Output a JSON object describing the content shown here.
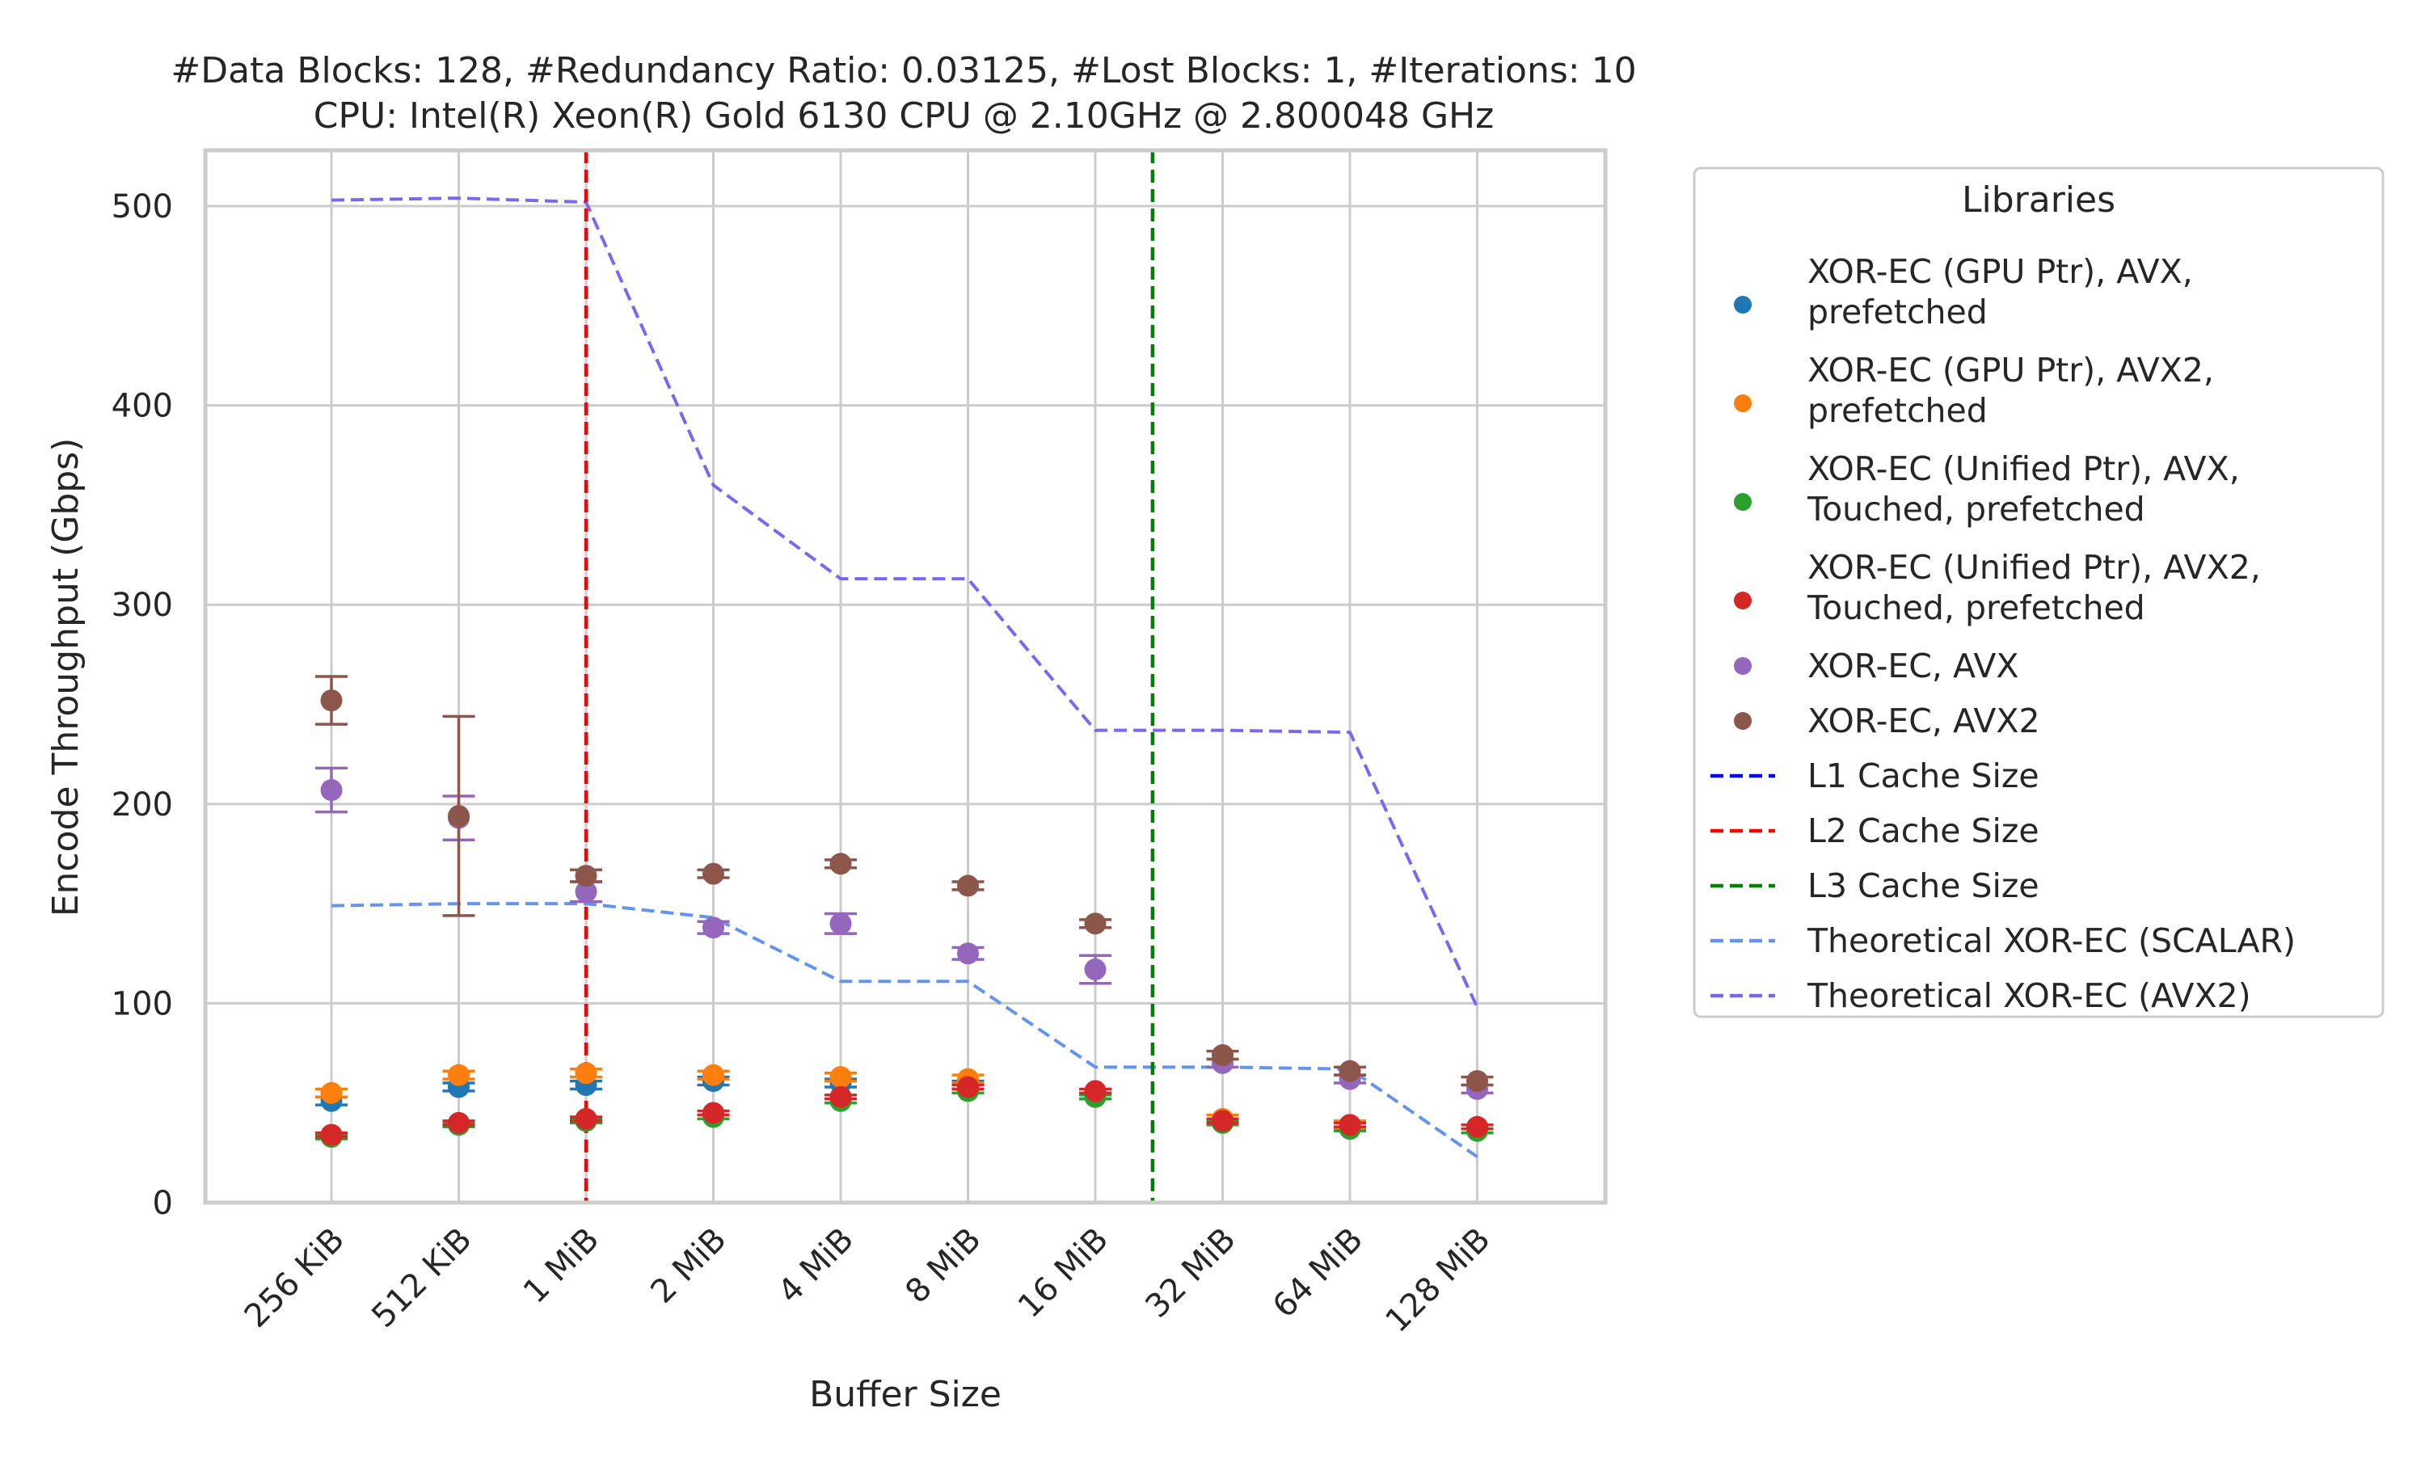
{
  "chart_data": {
    "type": "scatter",
    "title_line1": "#Data Blocks: 128, #Redundancy Ratio: 0.03125, #Lost Blocks: 1, #Iterations: 10",
    "title_line2": "CPU: Intel(R) Xeon(R) Gold 6130 CPU @ 2.10GHz @ 2.800048 GHz",
    "xlabel": "Buffer Size",
    "ylabel": "Encode Throughput (Gbps)",
    "categories": [
      "256 KiB",
      "512 KiB",
      "1 MiB",
      "2 MiB",
      "4 MiB",
      "8 MiB",
      "16 MiB",
      "32 MiB",
      "64 MiB",
      "128 MiB"
    ],
    "ylim": [
      0,
      528
    ],
    "yticks": [
      0,
      100,
      200,
      300,
      400,
      500
    ],
    "grid": true,
    "legend_title": "Libraries",
    "legend_position": "outside right",
    "series": [
      {
        "name": "XOR-EC (GPU Ptr), AVX, prefetched",
        "legend_lines": [
          "XOR-EC (GPU Ptr), AVX,",
          "prefetched"
        ],
        "color": "#1f77b4",
        "values": [
          51,
          58,
          59,
          61,
          60,
          59,
          null,
          null,
          null,
          null
        ],
        "err": [
          2,
          2,
          2,
          2,
          2,
          2,
          null,
          null,
          null,
          null
        ]
      },
      {
        "name": "XOR-EC (GPU Ptr), AVX2, prefetched",
        "legend_lines": [
          "XOR-EC (GPU Ptr), AVX2,",
          "prefetched"
        ],
        "color": "#ff7f0e",
        "values": [
          55,
          64,
          65,
          64,
          63,
          62,
          null,
          42,
          39,
          null
        ],
        "err": [
          2,
          2,
          2,
          2,
          2,
          2,
          null,
          2,
          2,
          null
        ]
      },
      {
        "name": "XOR-EC (Unified Ptr), AVX, Touched, prefetched",
        "legend_lines": [
          "XOR-EC (Unified Ptr), AVX,",
          "Touched, prefetched"
        ],
        "color": "#2ca02c",
        "values": [
          33,
          39,
          41,
          43,
          51,
          56,
          53,
          40,
          37,
          36
        ],
        "err": [
          1,
          1,
          1,
          1,
          1,
          1,
          1,
          1,
          1,
          1
        ]
      },
      {
        "name": "XOR-EC (Unified Ptr), AVX2, Touched, prefetched",
        "legend_lines": [
          "XOR-EC (Unified Ptr), AVX2,",
          "Touched, prefetched"
        ],
        "color": "#d62728",
        "values": [
          34,
          40,
          42,
          45,
          53,
          58,
          56,
          41,
          39,
          38
        ],
        "err": [
          1,
          1,
          1,
          1,
          1,
          1,
          1,
          1,
          1,
          1
        ]
      },
      {
        "name": "XOR-EC, AVX",
        "legend_lines": [
          "XOR-EC, AVX"
        ],
        "color": "#9467bd",
        "values": [
          207,
          193,
          156,
          138,
          140,
          125,
          117,
          70,
          62,
          57
        ],
        "err": [
          11,
          11,
          5,
          3,
          5,
          3,
          7,
          2,
          2,
          2
        ]
      },
      {
        "name": "XOR-EC, AVX2",
        "legend_lines": [
          "XOR-EC, AVX2"
        ],
        "color": "#8c564b",
        "values": [
          252,
          194,
          164,
          165,
          170,
          159,
          140,
          74,
          66,
          61
        ],
        "err": [
          12,
          50,
          3,
          2,
          2,
          2,
          2,
          2,
          2,
          2
        ]
      }
    ],
    "cache_lines": [
      {
        "name": "L1 Cache Size",
        "color": "#0000ff",
        "x_position": null
      },
      {
        "name": "L2 Cache Size",
        "color": "#ff0000",
        "x_position": 2
      },
      {
        "name": "L3 Cache Size",
        "color": "#008000",
        "x_position": 6.45
      }
    ],
    "theoretical": [
      {
        "name": "Theoretical XOR-EC (SCALAR)",
        "color": "#6495ed",
        "values": [
          149,
          150,
          150,
          143,
          111,
          111,
          68,
          68,
          67,
          23
        ]
      },
      {
        "name": "Theoretical XOR-EC (AVX2)",
        "color": "#7b68ee",
        "values": [
          503,
          504,
          502,
          360,
          313,
          313,
          237,
          237,
          236,
          98
        ]
      }
    ]
  }
}
